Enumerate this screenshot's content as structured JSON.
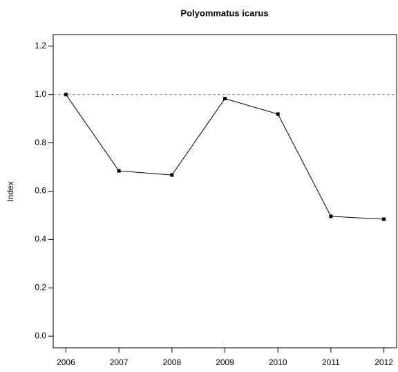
{
  "chart_data": {
    "type": "line",
    "title": "Polyommatus icarus",
    "ylabel": "Index",
    "x": [
      2006,
      2007,
      2008,
      2009,
      2010,
      2011,
      2012
    ],
    "series": [
      {
        "color": "#000000",
        "values": [
          1.0,
          0.684,
          0.667,
          0.983,
          0.919,
          0.496,
          0.484
        ]
      }
    ],
    "xlim": [
      2005.76,
      2012.24
    ],
    "xticks": [
      2006,
      2007,
      2008,
      2009,
      2010,
      2011,
      2012
    ],
    "ylim": [
      -0.048,
      1.248
    ],
    "yticks": [
      {
        "value": 0,
        "label": "0.0"
      },
      0.2,
      0.4,
      0.6,
      0.8,
      {
        "value": 1,
        "label": "1.0"
      },
      1.2
    ],
    "reference_line": 1
  }
}
